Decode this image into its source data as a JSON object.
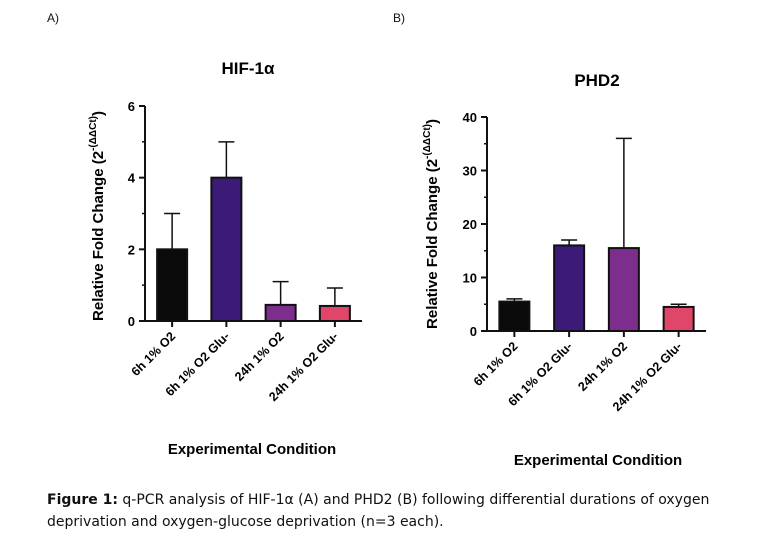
{
  "panels": [
    {
      "label": "A)"
    },
    {
      "label": "B)"
    }
  ],
  "colors": {
    "black": "#0a0a0a",
    "indigo": "#3c1a78",
    "purple": "#7d2e8c",
    "pink": "#e0466a"
  },
  "chart_data": [
    {
      "type": "bar",
      "title": "HIF-1α",
      "xlabel": "Experimental Condition",
      "ylabel_main": "Relative Fold Change (2",
      "ylabel_sup": "-(ΔΔCt)",
      "ylabel_close": ")",
      "categories": [
        "6h 1% O2",
        "6h 1% O2 Glu-",
        "24h 1% O2",
        "24h 1% O2 Glu-"
      ],
      "values": [
        2.0,
        4.0,
        0.45,
        0.42
      ],
      "error_upper": [
        3.0,
        5.0,
        1.1,
        0.92
      ],
      "bar_colors": [
        "#0a0a0a",
        "#3c1a78",
        "#7d2e8c",
        "#e0466a"
      ],
      "ylim": [
        0,
        6
      ],
      "yticks": [
        0,
        2,
        4,
        6
      ],
      "minor_ticks": [
        1,
        3,
        5
      ],
      "grid": false
    },
    {
      "type": "bar",
      "title": "PHD2",
      "xlabel": "Experimental Condition",
      "ylabel_main": "Relative Fold Change (2",
      "ylabel_sup": "-(ΔΔCt)",
      "ylabel_close": ")",
      "categories": [
        "6h 1% O2",
        "6h 1% O2 Glu-",
        "24h 1% O2",
        "24h 1% O2 Glu-"
      ],
      "values": [
        5.5,
        16.0,
        15.5,
        4.5
      ],
      "error_upper": [
        6.0,
        17.0,
        36.0,
        5.0
      ],
      "bar_colors": [
        "#0a0a0a",
        "#3c1a78",
        "#7d2e8c",
        "#e0466a"
      ],
      "ylim": [
        0,
        40
      ],
      "yticks": [
        0,
        10,
        20,
        30,
        40
      ],
      "minor_ticks": [
        5,
        15,
        25,
        35
      ],
      "grid": false
    }
  ],
  "caption": {
    "label": "Figure 1:",
    "text": " q-PCR analysis of HIF-1α (A) and PHD2 (B) following differential durations of oxygen deprivation and oxygen-glucose deprivation (n=3 each)."
  }
}
